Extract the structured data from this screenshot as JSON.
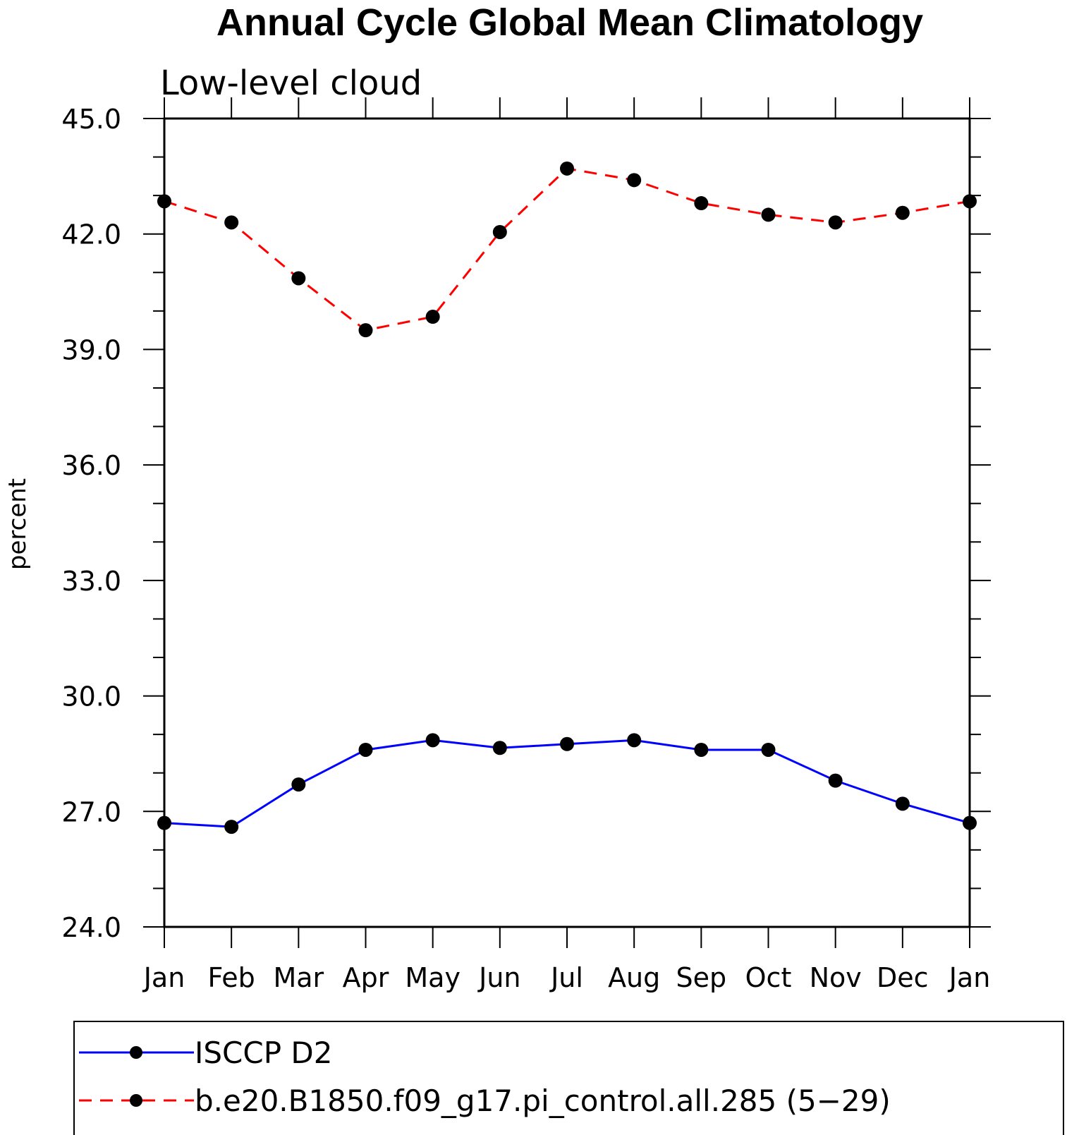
{
  "chart_data": {
    "type": "line",
    "title": "Annual Cycle Global Mean Climatology",
    "subtitle": "Low-level cloud",
    "xlabel": "",
    "ylabel": "percent",
    "categories": [
      "Jan",
      "Feb",
      "Mar",
      "Apr",
      "May",
      "Jun",
      "Jul",
      "Aug",
      "Sep",
      "Oct",
      "Nov",
      "Dec",
      "Jan"
    ],
    "ylim": [
      24.0,
      45.0
    ],
    "yticks": [
      "24.0",
      "27.0",
      "30.0",
      "33.0",
      "36.0",
      "39.0",
      "42.0",
      "45.0"
    ],
    "grid": false,
    "legend_position": "bottom",
    "series": [
      {
        "name": "ISCCP D2",
        "color": "#0000ff",
        "dash": "solid",
        "marker": "circle",
        "values": [
          26.7,
          26.6,
          27.7,
          28.6,
          28.85,
          28.65,
          28.75,
          28.85,
          28.6,
          28.6,
          27.8,
          27.2,
          26.7
        ]
      },
      {
        "name": "b.e20.B1850.f09_g17.pi_control.all.285 (5−29)",
        "color": "#ff0000",
        "dash": "dashed",
        "marker": "circle",
        "values": [
          42.85,
          42.3,
          40.85,
          39.5,
          39.85,
          42.05,
          43.7,
          43.4,
          42.8,
          42.5,
          42.3,
          42.55,
          42.85
        ]
      }
    ]
  }
}
